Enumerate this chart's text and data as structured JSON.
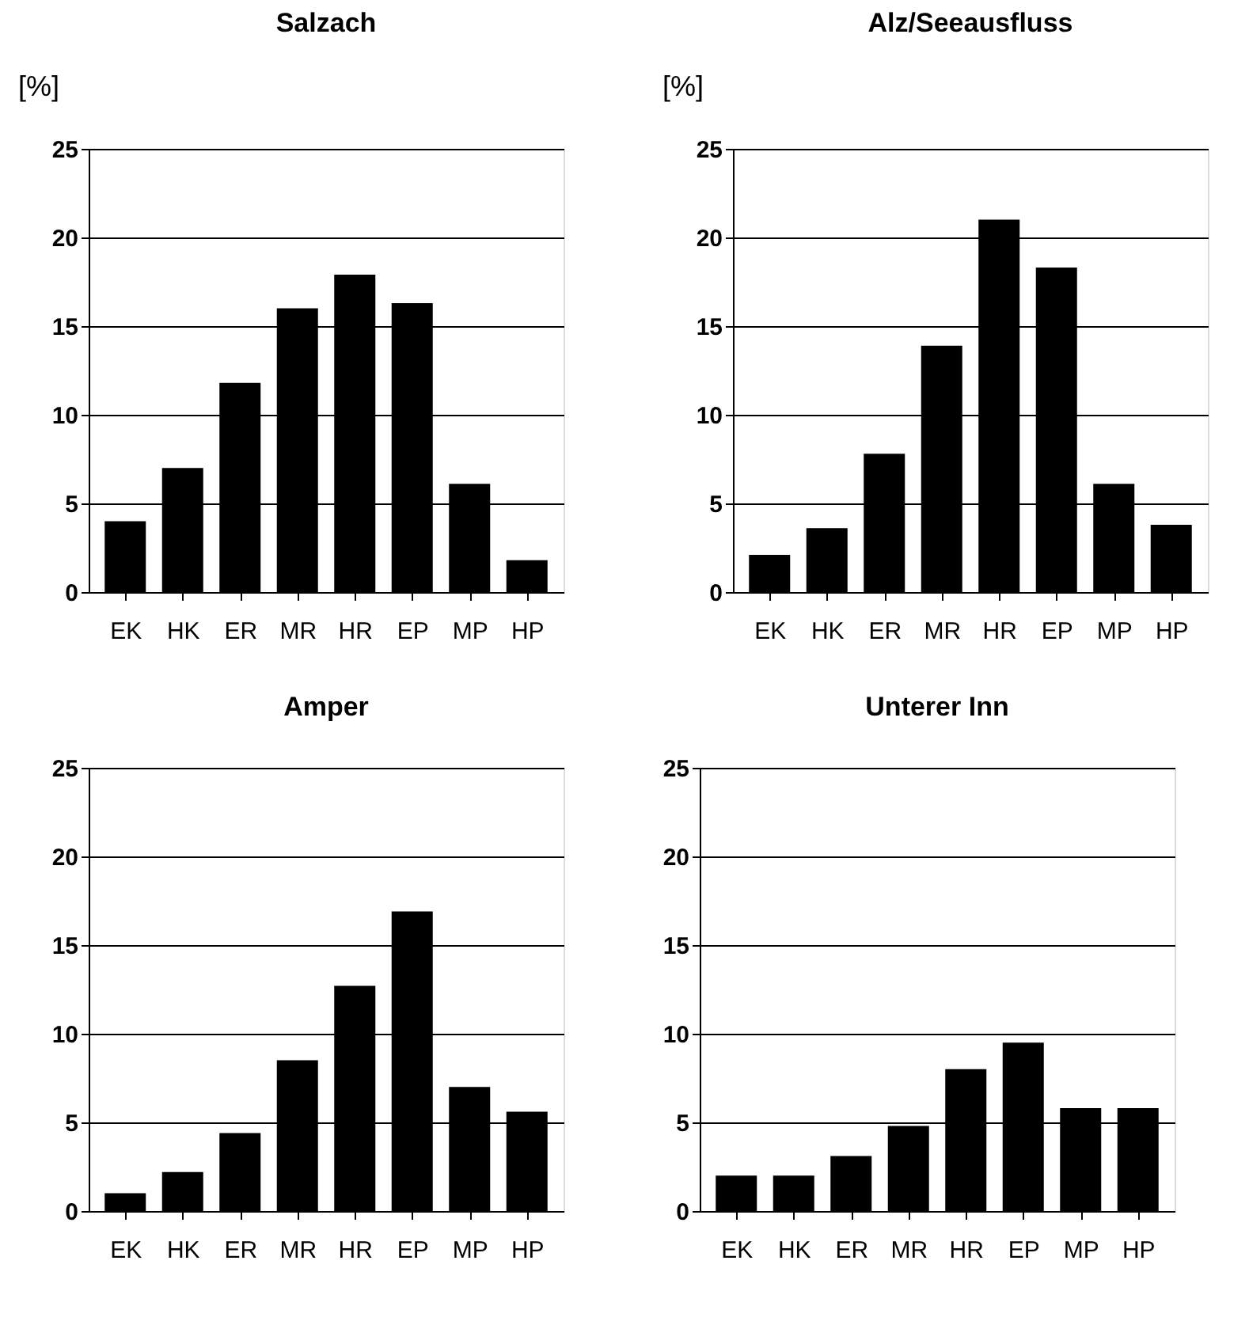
{
  "chart_data": [
    {
      "type": "bar",
      "title": "Salzach",
      "ylabel": "[%]",
      "categories": [
        "EK",
        "HK",
        "ER",
        "MR",
        "HR",
        "EP",
        "MP",
        "HP"
      ],
      "values": [
        4,
        7,
        11.8,
        16,
        17.9,
        16.3,
        6.1,
        1.8
      ],
      "color": "#000000",
      "ylim": [
        0,
        25
      ],
      "yticks": [
        0,
        5,
        10,
        15,
        20,
        25
      ],
      "grid": "y"
    },
    {
      "type": "bar",
      "title": "Alz/Seeausfluss",
      "ylabel": "[%]",
      "categories": [
        "EK",
        "HK",
        "ER",
        "MR",
        "HR",
        "EP",
        "MP",
        "HP"
      ],
      "values": [
        2.1,
        3.6,
        7.8,
        13.9,
        21,
        18.3,
        6.1,
        3.8
      ],
      "color": "#000000",
      "ylim": [
        0,
        25
      ],
      "yticks": [
        0,
        5,
        10,
        15,
        20,
        25
      ],
      "grid": "y"
    },
    {
      "type": "bar",
      "title": "Amper",
      "categories": [
        "EK",
        "HK",
        "ER",
        "MR",
        "HR",
        "EP",
        "MP",
        "HP"
      ],
      "values": [
        1,
        2.2,
        4.4,
        8.5,
        12.7,
        16.9,
        7,
        5.6
      ],
      "color": "#000000",
      "ylim": [
        0,
        25
      ],
      "yticks": [
        0,
        5,
        10,
        15,
        20,
        25
      ],
      "grid": "y"
    },
    {
      "type": "bar",
      "title": "Unterer Inn",
      "categories": [
        "EK",
        "HK",
        "ER",
        "MR",
        "HR",
        "EP",
        "MP",
        "HP"
      ],
      "values": [
        2,
        2,
        3.1,
        4.8,
        8,
        9.5,
        5.8,
        5.8
      ],
      "color": "#000000",
      "ylim": [
        0,
        25
      ],
      "yticks": [
        0,
        5,
        10,
        15,
        20,
        25
      ],
      "grid": "y"
    }
  ]
}
